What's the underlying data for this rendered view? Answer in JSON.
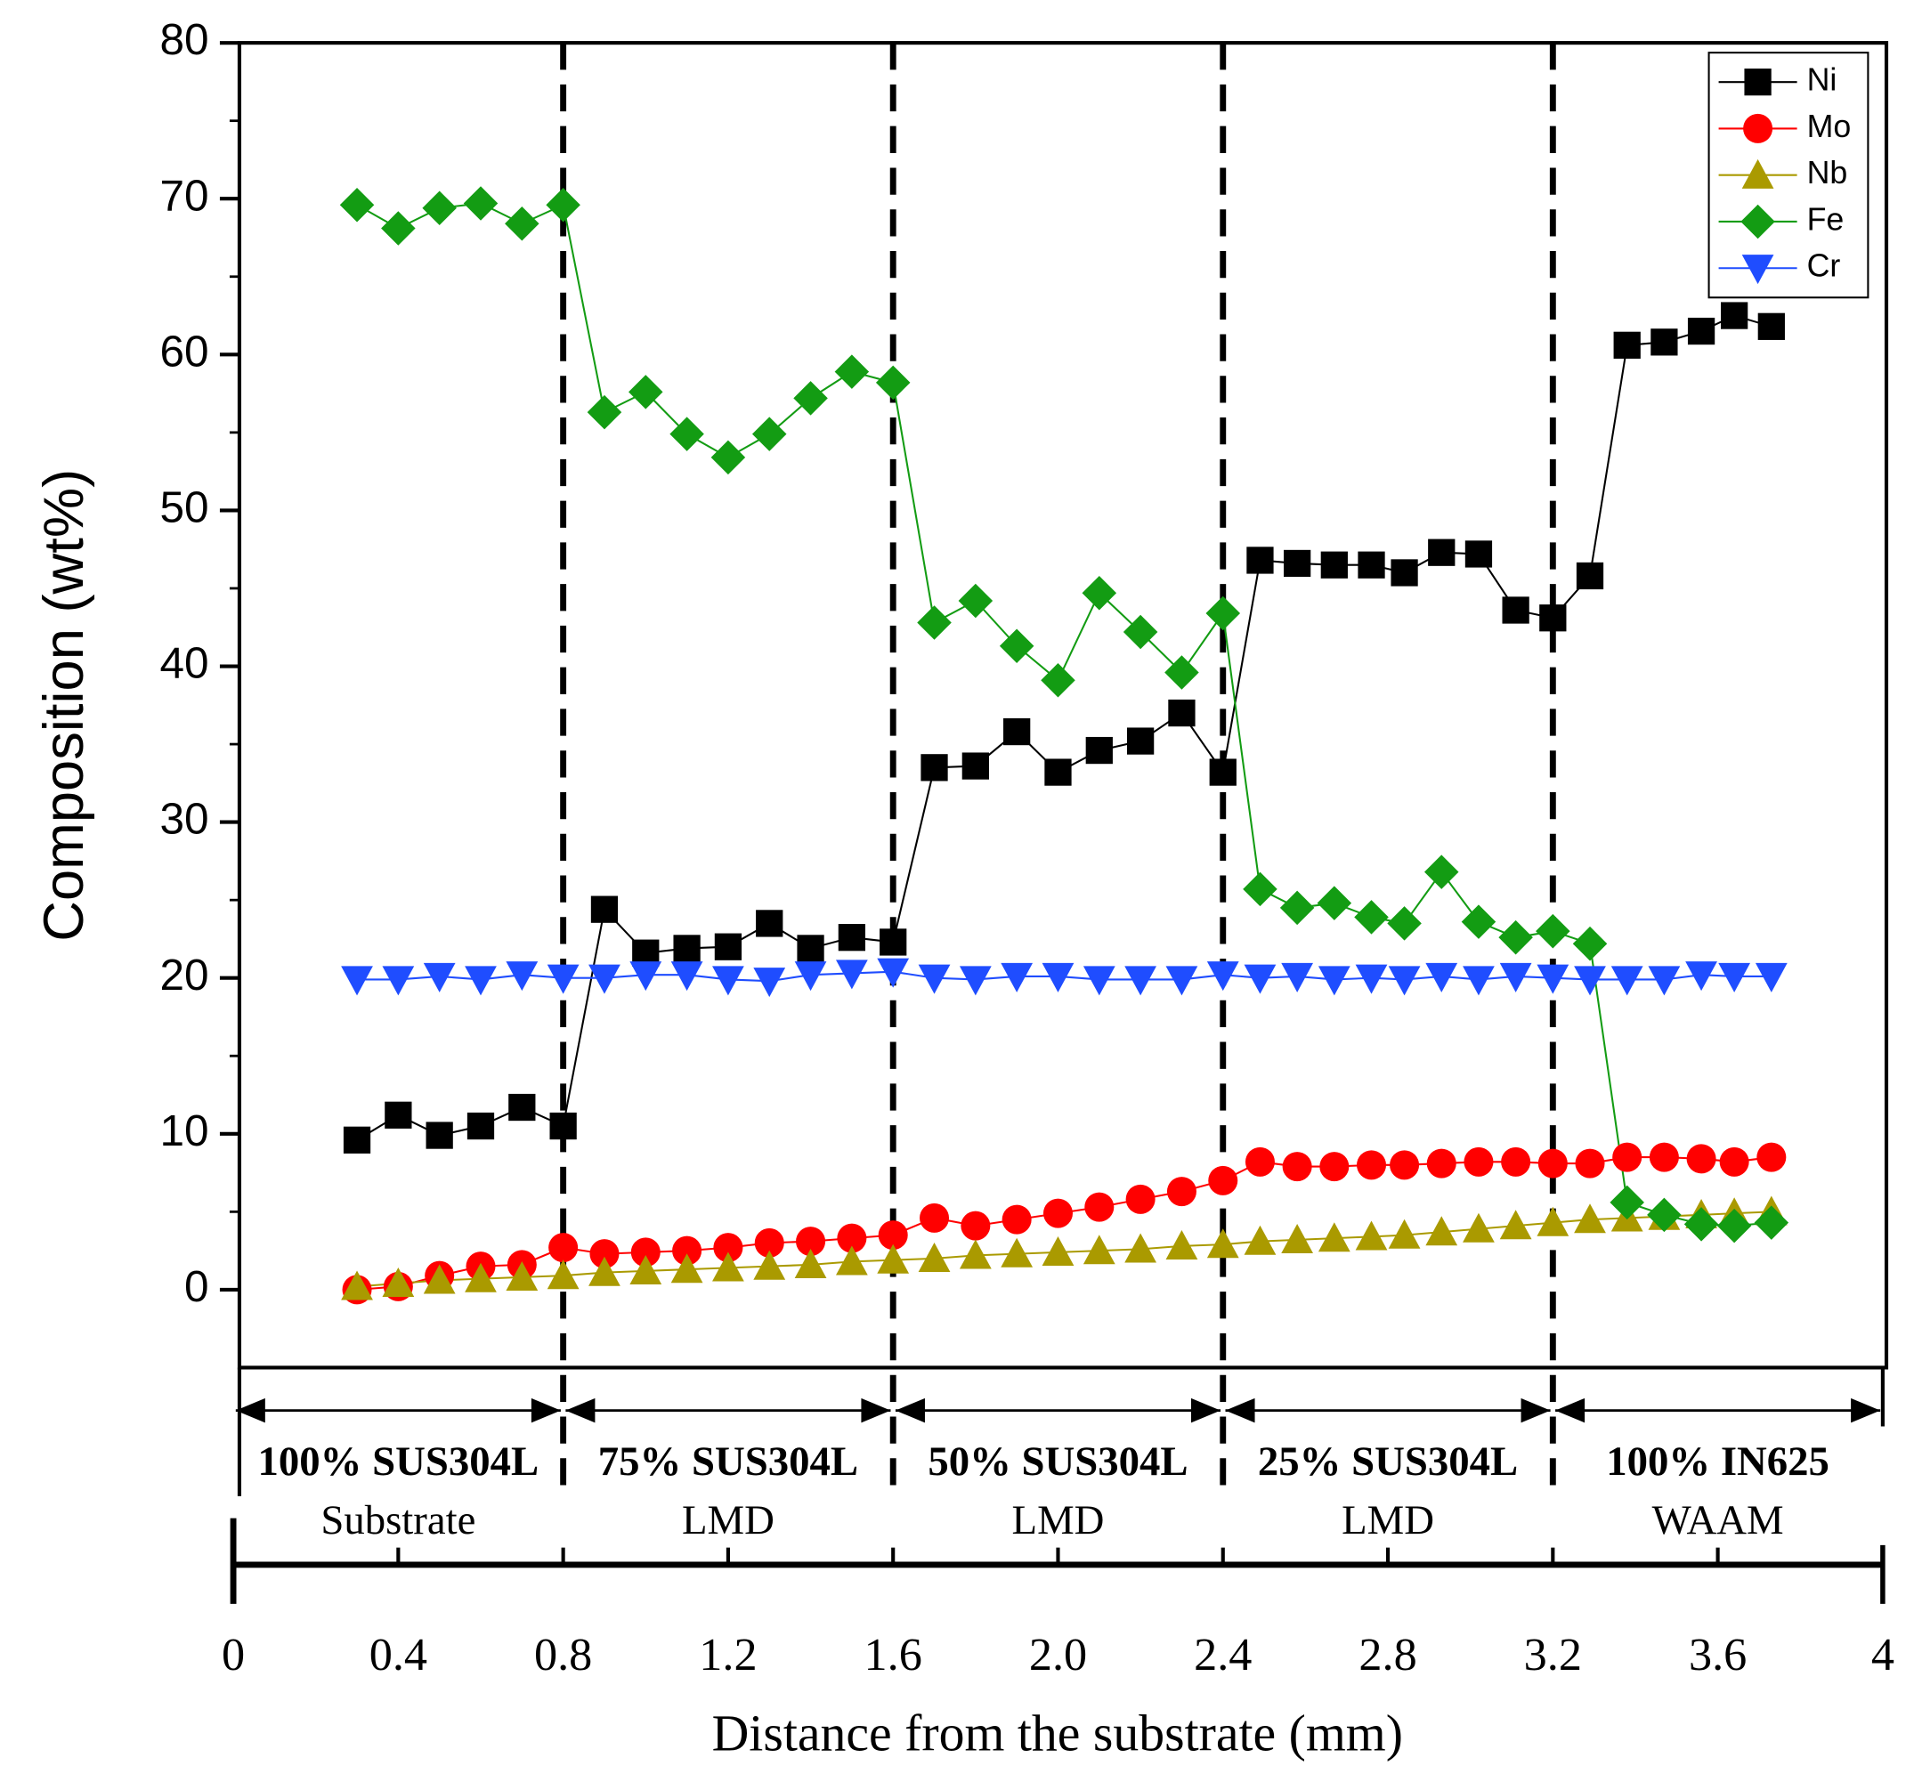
{
  "chart_data": {
    "type": "line",
    "ylabel": "Composition (wt%)",
    "xlabel": "Distance from the substrate (mm)",
    "x": [
      0.3,
      0.4,
      0.5,
      0.6,
      0.7,
      0.8,
      0.9,
      1.0,
      1.1,
      1.2,
      1.3,
      1.4,
      1.5,
      1.6,
      1.7,
      1.8,
      1.9,
      2.0,
      2.1,
      2.2,
      2.3,
      2.4,
      2.49,
      2.58,
      2.67,
      2.76,
      2.84,
      2.93,
      3.02,
      3.11,
      3.2,
      3.29,
      3.38,
      3.47,
      3.56,
      3.64,
      3.73
    ],
    "series": [
      {
        "name": "Ni",
        "color": "#000000",
        "marker": "square",
        "values": [
          9.6,
          11.2,
          9.9,
          10.5,
          11.7,
          10.5,
          24.4,
          21.6,
          21.9,
          22.0,
          23.5,
          21.9,
          22.6,
          22.3,
          33.5,
          33.6,
          35.8,
          33.2,
          34.6,
          35.2,
          37.0,
          33.2,
          46.8,
          46.6,
          46.5,
          46.5,
          46.0,
          47.3,
          47.2,
          43.6,
          43.1,
          45.8,
          60.6,
          60.8,
          61.5,
          62.5,
          61.8
        ]
      },
      {
        "name": "Mo",
        "color": "#ff0000",
        "marker": "circle",
        "values": [
          0.0,
          0.2,
          0.9,
          1.5,
          1.6,
          2.7,
          2.3,
          2.4,
          2.5,
          2.7,
          3.0,
          3.1,
          3.3,
          3.5,
          4.6,
          4.1,
          4.5,
          4.9,
          5.3,
          5.8,
          6.3,
          7.0,
          8.2,
          7.9,
          7.9,
          8.0,
          8.0,
          8.1,
          8.2,
          8.2,
          8.1,
          8.1,
          8.5,
          8.5,
          8.4,
          8.2,
          8.5
        ]
      },
      {
        "name": "Nb",
        "color": "#aa9a00",
        "marker": "triangle",
        "values": [
          0.2,
          0.4,
          0.6,
          0.7,
          0.8,
          0.9,
          1.1,
          1.2,
          1.3,
          1.4,
          1.5,
          1.6,
          1.8,
          1.9,
          2.0,
          2.2,
          2.3,
          2.4,
          2.5,
          2.6,
          2.8,
          2.9,
          3.1,
          3.2,
          3.3,
          3.4,
          3.5,
          3.7,
          3.9,
          4.1,
          4.3,
          4.5,
          4.6,
          4.7,
          4.8,
          4.9,
          5.0
        ]
      },
      {
        "name": "Fe",
        "color": "#139c13",
        "marker": "diamond",
        "values": [
          69.6,
          68.1,
          69.4,
          69.7,
          68.4,
          69.6,
          56.3,
          57.6,
          54.9,
          53.4,
          54.9,
          57.2,
          58.9,
          58.2,
          42.8,
          44.2,
          41.3,
          39.1,
          44.7,
          42.2,
          39.6,
          43.4,
          25.7,
          24.5,
          24.8,
          23.9,
          23.5,
          26.8,
          23.6,
          22.6,
          23.0,
          22.2,
          5.6,
          4.8,
          4.2,
          4.1,
          4.3
        ]
      },
      {
        "name": "Cr",
        "color": "#1f4dff",
        "marker": "triangle-down",
        "values": [
          19.9,
          19.9,
          20.1,
          19.9,
          20.2,
          20.0,
          20.0,
          20.2,
          20.2,
          19.9,
          19.8,
          20.2,
          20.3,
          20.4,
          20.0,
          19.9,
          20.1,
          20.1,
          19.9,
          19.9,
          19.9,
          20.2,
          20.0,
          20.1,
          19.9,
          20.0,
          19.9,
          20.1,
          19.9,
          20.1,
          20.0,
          19.9,
          19.9,
          19.9,
          20.2,
          20.1,
          20.1
        ]
      }
    ],
    "sections": [
      {
        "label": "100% SUS304L",
        "process": "Substrate",
        "start": 0,
        "end": 0.8
      },
      {
        "label": "75% SUS304L",
        "process": "LMD",
        "start": 0.8,
        "end": 1.6
      },
      {
        "label": "50% SUS304L",
        "process": "LMD",
        "start": 1.6,
        "end": 2.4
      },
      {
        "label": "25% SUS304L",
        "process": "LMD",
        "start": 2.4,
        "end": 3.2
      },
      {
        "label": "100% IN625",
        "process": "WAAM",
        "start": 3.2,
        "end": 4
      }
    ],
    "xlim": [
      0,
      4
    ],
    "xticks": [
      0,
      0.4,
      0.8,
      1.2,
      1.6,
      {
        "value": 2,
        "label": "2.0"
      },
      2.4,
      2.8,
      3.2,
      3.6,
      4
    ],
    "ylim": [
      -5,
      80
    ],
    "yticks": [
      0,
      10,
      20,
      30,
      40,
      50,
      60,
      70,
      80
    ],
    "legend": "upper right"
  }
}
